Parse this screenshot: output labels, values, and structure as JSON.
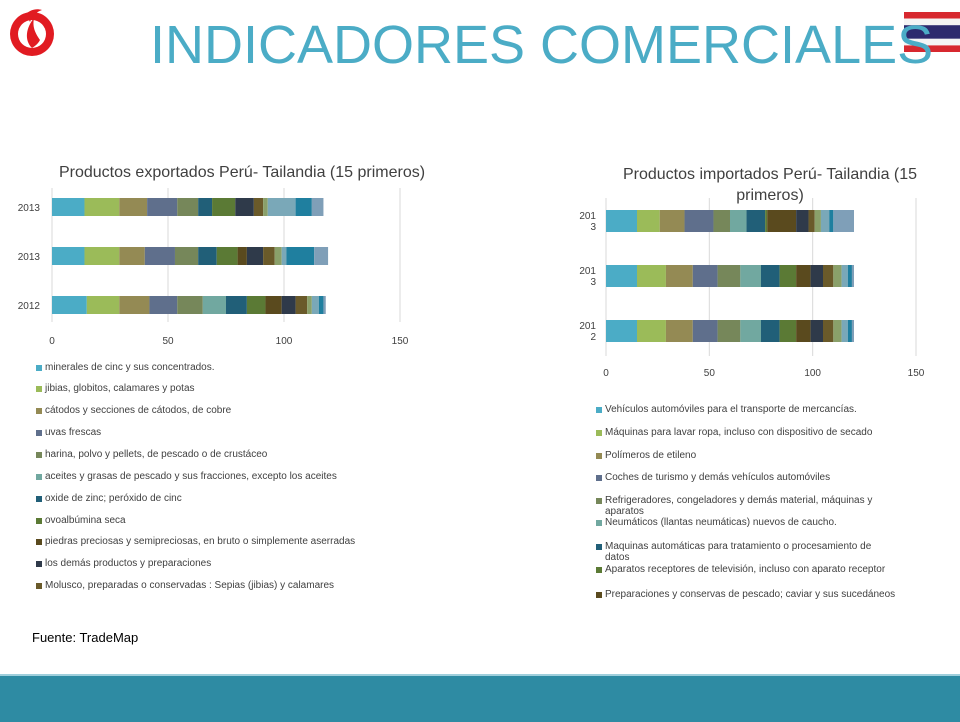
{
  "header": {
    "title": "INDICADORES COMERCIALES"
  },
  "source": "Fuente: TradeMap",
  "colors": [
    "#4bacc6",
    "#9bbb59",
    "#948a54",
    "#5f6f8c",
    "#76875a",
    "#71a8a0",
    "#215f78",
    "#5b7a35",
    "#5a4a1e",
    "#2f3a4a",
    "#6a5a2a",
    "#8aa06a",
    "#7aa8b8",
    "#1f7f9f",
    "#7f9fb8",
    "#a8b888"
  ],
  "chart_data": [
    {
      "type": "bar",
      "orientation": "horizontal",
      "stacked": true,
      "title": "Productos exportados Perú- Tailandia (15 primeros)",
      "categories": [
        "2013",
        "2013",
        "2012"
      ],
      "xlim": [
        0,
        150
      ],
      "xticks": [
        "0",
        "50",
        "100",
        "150"
      ],
      "legend_position": "bottom",
      "series": [
        {
          "name": "minerales de cinc y sus concentrados.",
          "values": [
            14,
            14,
            15
          ]
        },
        {
          "name": " jibias, globitos, calamares y potas",
          "values": [
            15,
            15,
            14
          ]
        },
        {
          "name": " cátodos y secciones de cátodos, de cobre",
          "values": [
            12,
            11,
            13
          ]
        },
        {
          "name": "uvas frescas",
          "values": [
            13,
            13,
            12
          ]
        },
        {
          "name": " harina, polvo y pellets, de pescado o de crustáceo",
          "values": [
            9,
            10,
            11
          ]
        },
        {
          "name": "aceites y grasas de pescado y sus fracciones, excepto los aceites",
          "values": [
            0,
            0,
            10
          ]
        },
        {
          "name": "oxide de zinc; peróxido de cinc",
          "values": [
            6,
            8,
            9
          ]
        },
        {
          "name": "ovoalbúmina seca",
          "values": [
            10,
            9,
            8
          ]
        },
        {
          "name": "piedras preciosas y semipreciosas, en bruto o simplemente aserradas",
          "values": [
            0,
            4,
            7
          ]
        },
        {
          "name": "los demás productos y preparaciones",
          "values": [
            8,
            7,
            6
          ]
        },
        {
          "name": "Molusco, preparadas o conservadas : Sepias (jibias) y calamares",
          "values": [
            4,
            5,
            5
          ]
        },
        {
          "name": "",
          "values": [
            2,
            3,
            2
          ]
        },
        {
          "name": "",
          "values": [
            12,
            2,
            3
          ]
        },
        {
          "name": "",
          "values": [
            7,
            12,
            2
          ]
        },
        {
          "name": "",
          "values": [
            5,
            6,
            1
          ]
        }
      ]
    },
    {
      "type": "bar",
      "orientation": "horizontal",
      "stacked": true,
      "title": "Productos importados Perú- Tailandia (15 primeros)",
      "categories": [
        "201\n3",
        "201\n3",
        "201\n2"
      ],
      "xlim": [
        0,
        150
      ],
      "xticks": [
        "0",
        "50",
        "100",
        "150"
      ],
      "legend_position": "bottom",
      "series": [
        {
          "name": "Vehículos automóviles para el transporte de mercancías.",
          "values": [
            15,
            15,
            15
          ]
        },
        {
          "name": " Máquinas para lavar ropa, incluso con dispositivo de secado",
          "values": [
            11,
            14,
            14
          ]
        },
        {
          "name": "Polímeros de etileno",
          "values": [
            12,
            13,
            13
          ]
        },
        {
          "name": "Coches de turismo y demás vehículos automóviles",
          "values": [
            14,
            12,
            12
          ]
        },
        {
          "name": "Refrigeradores, congeladores y demás material, máquinas y aparatos",
          "values": [
            8,
            11,
            11
          ]
        },
        {
          "name": "Neumáticos (llantas neumáticas) nuevos de caucho.",
          "values": [
            8,
            10,
            10
          ]
        },
        {
          "name": "Maquinas automáticas para tratamiento o procesamiento de datos",
          "values": [
            9,
            9,
            9
          ]
        },
        {
          "name": "Aparatos receptores de televisión, incluso con aparato receptor",
          "values": [
            1,
            8,
            8
          ]
        },
        {
          "name": "Preparaciones y conservas de pescado; caviar y sus sucedáneos",
          "values": [
            14,
            7,
            7
          ]
        },
        {
          "name": "",
          "values": [
            6,
            6,
            6
          ]
        },
        {
          "name": "",
          "values": [
            3,
            5,
            5
          ]
        },
        {
          "name": "",
          "values": [
            3,
            4,
            4
          ]
        },
        {
          "name": "",
          "values": [
            4,
            3,
            3
          ]
        },
        {
          "name": "",
          "values": [
            2,
            2,
            2
          ]
        },
        {
          "name": "",
          "values": [
            10,
            1,
            1
          ]
        }
      ]
    }
  ]
}
